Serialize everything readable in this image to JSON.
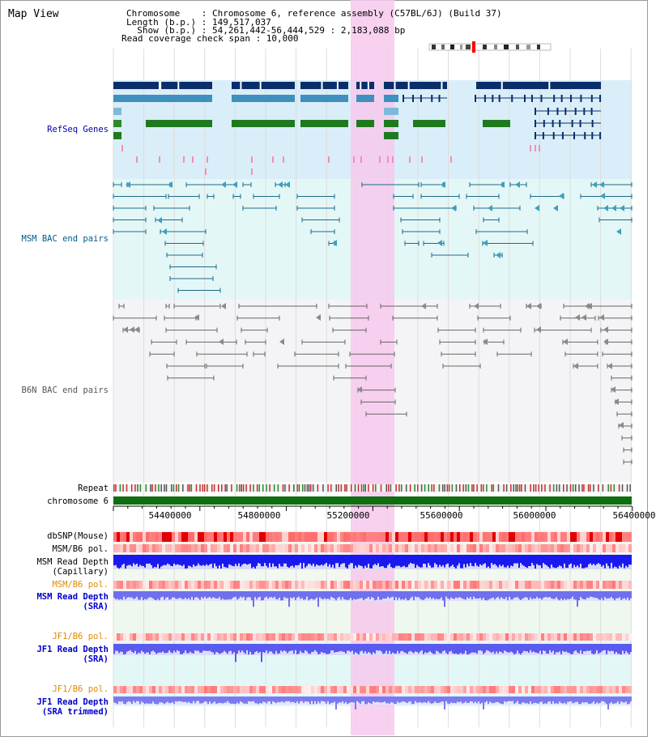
{
  "view_title": "Map View",
  "header": {
    "chromosome_line": "Chromosome    : Chromosome 6, reference assembly (C57BL/6J) (Build 37)",
    "length_line": "Length (b.p.) : 149,517,037",
    "show_line": "  Show (b.p.) : 54,261,442-56,444,529 : 2,183,088 bp",
    "span_line": "Read coverage check span : 10,000"
  },
  "tracks": {
    "refseq": "RefSeq Genes",
    "msm_bac": "MSM BAC end pairs",
    "b6n_bac": "B6N BAC end pairs",
    "repeat": "Repeat",
    "chromosome": "chromosome 6",
    "dbsnp": "dbSNP(Mouse)",
    "msm_b6_pol": "MSM/B6 pol.",
    "msm_depth_cap_1": "MSM Read Depth",
    "msm_depth_cap_2": "(Capillary)",
    "msm_b6_pol_2": "MSM/B6 pol.",
    "msm_depth_sra_1": "MSM Read Depth",
    "msm_depth_sra_2": "(SRA)",
    "jf1_b6_pol": "JF1/B6 pol.",
    "jf1_depth_sra_1": "JF1 Read Depth",
    "jf1_depth_sra_2": "(SRA)",
    "jf1_b6_pol_2": "JF1/B6 pol.",
    "jf1_depth_trim_1": "JF1 Read Depth",
    "jf1_depth_trim_2": "(SRA trimmed)"
  },
  "axis_ticks": [
    "54400000",
    "54800000",
    "55200000",
    "55600000",
    "56000000",
    "56400000"
  ],
  "colors": {
    "refseq_label": "#0000aa",
    "msm_label": "#005a8a",
    "b6n_label": "#555555",
    "orange_label": "#e08a00",
    "blue_label": "#0000cc",
    "highlight": "#f6c9ec"
  }
}
